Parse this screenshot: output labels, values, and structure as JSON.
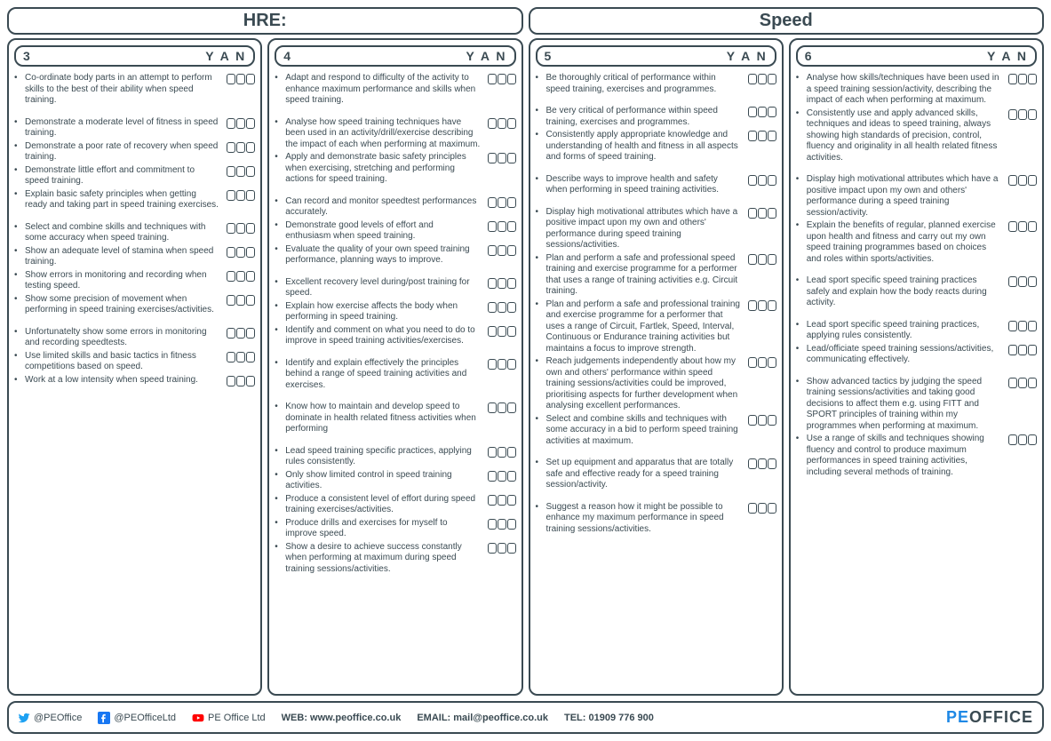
{
  "headers": {
    "left": "HRE:",
    "right": "Speed"
  },
  "yan_label": "Y A N",
  "columns": [
    {
      "level": "3",
      "items": [
        {
          "text": "Co-ordinate body parts in an attempt to perform skills to the best of their ability when speed training.",
          "gap": false
        },
        {
          "text": "Demonstrate a moderate level of fitness in speed training.",
          "gap": true
        },
        {
          "text": "Demonstrate a poor rate of recovery when speed training.",
          "gap": false
        },
        {
          "text": "Demonstrate little effort and commitment to speed training.",
          "gap": false
        },
        {
          "text": "Explain basic safety principles when getting ready and taking part in speed training exercises.",
          "gap": false
        },
        {
          "text": "Select and combine skills and techniques with some accuracy when speed training.",
          "gap": true
        },
        {
          "text": "Show an adequate level of stamina when speed training.",
          "gap": false
        },
        {
          "text": "Show errors in monitoring and recording when testing speed.",
          "gap": false
        },
        {
          "text": "Show some precision of movement when performing in speed training exercises/activities.",
          "gap": false
        },
        {
          "text": "Unfortunatelty show some errors in monitoring and recording speedtests.",
          "gap": true
        },
        {
          "text": "Use limited skills and basic tactics in fitness competitions based on speed.",
          "gap": false
        },
        {
          "text": "Work at a low intensity when speed training.",
          "gap": false
        }
      ]
    },
    {
      "level": "4",
      "items": [
        {
          "text": "Adapt and respond to difficulty of the activity to enhance maximum performance and skills when speed training.",
          "gap": false
        },
        {
          "text": "Analyse how speed training techniques have been used in an activity/drill/exercise describing the impact of each when performing at maximum.",
          "gap": true
        },
        {
          "text": "Apply and demonstrate basic safety principles when exercising, stretching and performing actions for speed training.",
          "gap": false
        },
        {
          "text": "Can record and monitor speedtest performances accurately.",
          "gap": true
        },
        {
          "text": "Demonstrate good levels of effort and enthusiasm when speed training.",
          "gap": false
        },
        {
          "text": "Evaluate the quality of your own speed training performance, planning ways to improve.",
          "gap": false
        },
        {
          "text": "Excellent recovery level during/post training for speed.",
          "gap": true
        },
        {
          "text": "Explain how exercise affects the body when performing in speed training.",
          "gap": false
        },
        {
          "text": "Identify and comment on what you need to do to improve in speed training activities/exercises.",
          "gap": false
        },
        {
          "text": "Identify and explain effectively the principles behind a range of speed training activities and exercises.",
          "gap": true
        },
        {
          "text": "Know how to maintain and develop speed to dominate in health related fitness activities when performing",
          "gap": true
        },
        {
          "text": "Lead speed training specific practices, applying rules consistently.",
          "gap": true
        },
        {
          "text": "Only show limited control in speed training activities.",
          "gap": false
        },
        {
          "text": "Produce a consistent level of effort during speed training exercises/activities.",
          "gap": false
        },
        {
          "text": "Produce drills and exercises for myself to improve speed.",
          "gap": false
        },
        {
          "text": "Show a desire to achieve success constantly when performing at maximum during speed training sessions/activities.",
          "gap": false
        }
      ]
    },
    {
      "level": "5",
      "items": [
        {
          "text": "Be thoroughly critical of performance within speed training, exercises and programmes.",
          "gap": false
        },
        {
          "text": "Be very critical of performance within speed training, exercises and programmes.",
          "gap": true
        },
        {
          "text": "Consistently apply appropriate knowledge and understanding of health and fitness in all aspects and forms of speed training.",
          "gap": false
        },
        {
          "text": "Describe ways to improve health and safety when performing in speed training activities.",
          "gap": true
        },
        {
          "text": "Display high motivational attributes which have a positive impact upon my own and others' performance during speed training sessions/activities.",
          "gap": true
        },
        {
          "text": "Plan and perform a safe and professional speed training and exercise programme for a performer that uses a range of training activities e.g. Circuit training.",
          "gap": false
        },
        {
          "text": "Plan and perform a safe and professional training and exercise programme for a performer that uses a range of Circuit, Fartlek, Speed, Interval, Continuous or Endurance training activities but maintains a focus to improve strength.",
          "gap": false
        },
        {
          "text": "Reach judgements independently about how my own and others' performance within speed training sessions/activities could be improved, prioritising aspects for further development when analysing excellent performances.",
          "gap": false
        },
        {
          "text": "Select and combine skills and techniques with some accuracy in a bid to perform speed training activities at maximum.",
          "gap": false
        },
        {
          "text": "Set up equipment and apparatus that are totally safe and effective ready for a speed training session/activity.",
          "gap": true
        },
        {
          "text": "Suggest a reason how it might be possible to enhance my maximum performance in speed training sessions/activities.",
          "gap": true
        }
      ]
    },
    {
      "level": "6",
      "items": [
        {
          "text": "Analyse how skills/techniques have been used in a speed training session/activity, describing the impact of each when performing at maximum.",
          "gap": false
        },
        {
          "text": "Consistently use and apply advanced skills, techniques and ideas to speed training, always showing high standards of precision, control, fluency and originality in all health related fitness activities.",
          "gap": false
        },
        {
          "text": "Display high motivational attributes which have a positive impact upon my own and others' performance during a speed training session/activity.",
          "gap": true
        },
        {
          "text": "Explain the benefits of regular, planned exercise upon health and fitness and carry out my own speed training programmes based on choices and roles within sports/activities.",
          "gap": false
        },
        {
          "text": "Lead sport specific speed training practices safely and explain how the body reacts during activity.",
          "gap": true
        },
        {
          "text": "Lead sport specific speed training practices, applying rules consistently.",
          "gap": true
        },
        {
          "text": "Lead/officiate speed training sessions/activities, communicating effectively.",
          "gap": false
        },
        {
          "text": "Show advanced tactics by judging the speed training sessions/activities and taking good decisions to affect them e.g. using FITT and SPORT principles of training within my programmes when performing at maximum.",
          "gap": true
        },
        {
          "text": "Use a range of skills and techniques showing fluency and control to produce maximum performances in speed training activities, including several methods of training.",
          "gap": false
        }
      ]
    }
  ],
  "footer": {
    "twitter": "@PEOffice",
    "facebook": "@PEOfficeLtd",
    "youtube": "PE Office Ltd",
    "web_label": "WEB:",
    "web": "www.peoffice.co.uk",
    "email_label": "EMAIL:",
    "email": "mail@peoffice.co.uk",
    "tel_label": "TEL:",
    "tel": "01909 776 900",
    "brand_pe": "PE",
    "brand_office": "OFFICE"
  }
}
